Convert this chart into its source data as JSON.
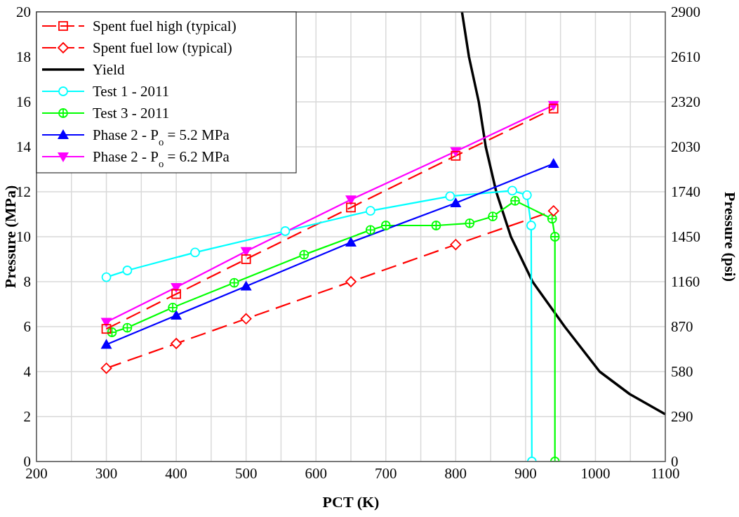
{
  "chart_data": {
    "type": "line",
    "xlabel": "PCT (K)",
    "ylabel": "Pressure (MPa)",
    "y2label": "Pressure (psi)",
    "xlim": [
      200,
      1100
    ],
    "xticks": [
      200,
      {
        "value": 250,
        "label": null
      },
      300,
      {
        "value": 350,
        "label": null
      },
      400,
      {
        "value": 450,
        "label": null
      },
      500,
      {
        "value": 550,
        "label": null
      },
      600,
      {
        "value": 650,
        "label": null
      },
      700,
      {
        "value": 750,
        "label": null
      },
      800,
      {
        "value": 850,
        "label": null
      },
      900,
      {
        "value": 950,
        "label": null
      },
      1000,
      {
        "value": 1050,
        "label": null
      },
      1100
    ],
    "ylim": [
      0,
      20
    ],
    "yticks": [
      0,
      2,
      4,
      6,
      8,
      10,
      12,
      14,
      16,
      18,
      20
    ],
    "y2lim": [
      0,
      2900
    ],
    "y2ticks": [
      0,
      290,
      580,
      870,
      1160,
      1450,
      1740,
      2030,
      2320,
      2610,
      2900
    ],
    "grid": true,
    "legend": "top left",
    "series": [
      {
        "name": "Spent fuel high (typical)",
        "color": "#ff0000",
        "marker": "square",
        "line_style": "dashed",
        "x": [
          300,
          400,
          500,
          650,
          800,
          940
        ],
        "values": [
          5.9,
          7.45,
          9.0,
          11.3,
          13.6,
          15.7
        ]
      },
      {
        "name": "Spent fuel low (typical)",
        "color": "#ff0000",
        "marker": "diamond",
        "line_style": "dashed",
        "x": [
          300,
          400,
          500,
          650,
          800,
          940
        ],
        "values": [
          4.15,
          5.25,
          6.35,
          8.0,
          9.65,
          11.15
        ]
      },
      {
        "name": "Yield",
        "color": "#000000",
        "marker": "none",
        "line_style": "solid",
        "x": [
          809,
          819,
          833,
          843,
          858,
          879,
          910,
          956,
          1006,
          1049,
          1100
        ],
        "values": [
          20,
          18,
          16,
          14,
          12,
          10,
          8,
          6,
          4,
          3,
          2.1
        ]
      },
      {
        "name": "Test 1 - 2011",
        "color": "#00ffff",
        "marker": "circle",
        "line_style": "solid",
        "x": [
          300,
          330,
          427,
          556,
          678,
          792,
          881,
          902,
          908,
          909
        ],
        "values": [
          8.2,
          8.5,
          9.3,
          10.25,
          11.15,
          11.8,
          12.05,
          11.85,
          10.5,
          0
        ]
      },
      {
        "name": "Test 3 - 2011",
        "color": "#00ff00",
        "marker": "cross",
        "line_style": "solid",
        "x": [
          308,
          330,
          395,
          483,
          583,
          678,
          700,
          772,
          820,
          853,
          885,
          938,
          942,
          942
        ],
        "values": [
          5.75,
          5.95,
          6.85,
          7.95,
          9.2,
          10.3,
          10.5,
          10.5,
          10.6,
          10.9,
          11.6,
          10.8,
          10.0,
          0
        ]
      },
      {
        "name": "Phase 2 - P$_{o}$ = 5.2 MPa",
        "color": "#0000ff",
        "marker": "triangle",
        "line_style": "solid",
        "x": [
          300,
          400,
          500,
          650,
          800,
          940
        ],
        "values": [
          5.2,
          6.5,
          7.8,
          9.75,
          11.5,
          13.25
        ]
      },
      {
        "name": "Phase 2 - P$_{o}$ = 6.2 MPa",
        "color": "#ff00ff",
        "marker": "triangle-down",
        "line_style": "solid",
        "x": [
          300,
          400,
          500,
          650,
          800,
          940
        ],
        "values": [
          6.2,
          7.75,
          9.35,
          11.65,
          13.8,
          15.85
        ]
      }
    ]
  }
}
